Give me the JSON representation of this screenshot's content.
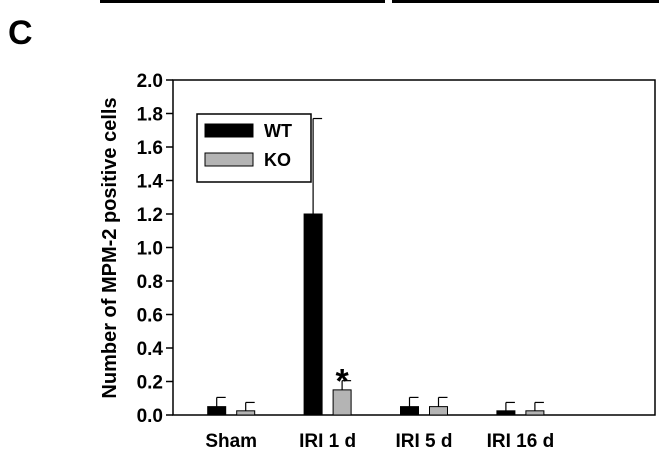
{
  "panel_label": "C",
  "chart_data": {
    "type": "bar",
    "ylabel": "Number of MPM-2 positive cells",
    "xlabel": "",
    "ylim": [
      0,
      2.0
    ],
    "yticks": [
      "0.0",
      "0.2",
      "0.4",
      "0.6",
      "0.8",
      "1.0",
      "1.2",
      "1.4",
      "1.6",
      "1.8",
      "2.0"
    ],
    "categories": [
      "Sham",
      "IRI 1 d",
      "IRI 5 d",
      "IRI 16 d"
    ],
    "series": [
      {
        "name": "WT",
        "color": "#000000",
        "values": [
          0.05,
          1.2,
          0.05,
          0.025
        ],
        "errors": [
          0.055,
          0.57,
          0.055,
          0.05
        ]
      },
      {
        "name": "KO",
        "color": "#b4b4b4",
        "values": [
          0.025,
          0.15,
          0.05,
          0.025
        ],
        "errors": [
          0.05,
          0.055,
          0.055,
          0.05
        ]
      }
    ],
    "annotations": [
      {
        "text": "*",
        "category": "IRI 1 d",
        "series": "KO"
      }
    ],
    "legend_position": "top-left",
    "grid": false
  }
}
